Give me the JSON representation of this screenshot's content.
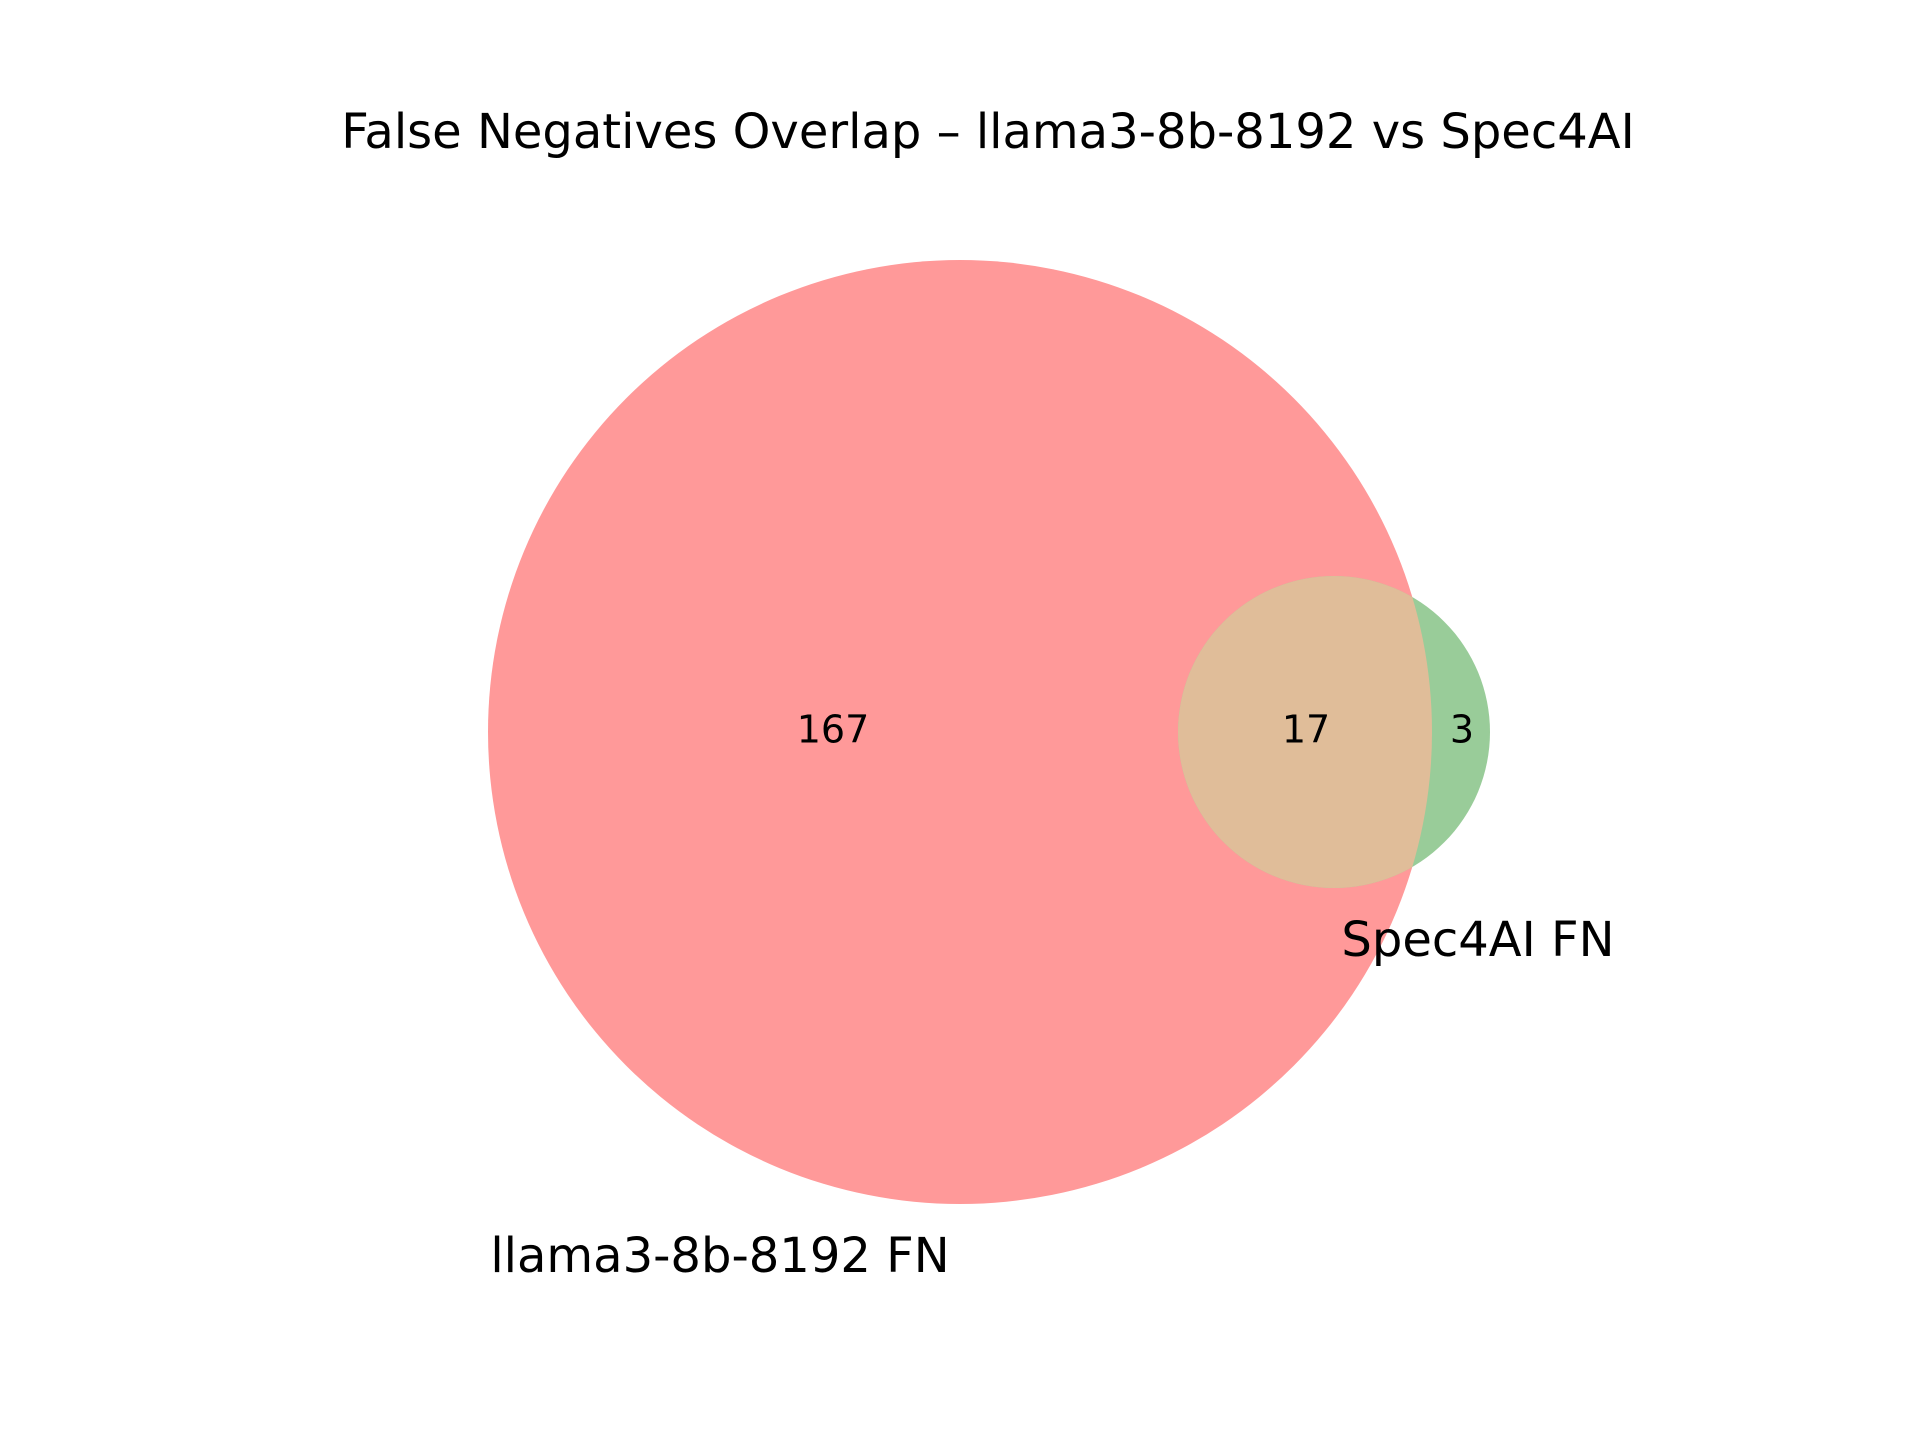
{
  "chart_data": {
    "type": "venn",
    "title": "False Negatives Overlap – llama3-8b-8192 vs Spec4AI",
    "sets": [
      {
        "name": "llama3-8b-8192 FN",
        "color": "#ff9999"
      },
      {
        "name": "Spec4AI FN",
        "color": "#99cc99"
      }
    ],
    "regions": {
      "only_a": 167,
      "overlap": 17,
      "only_b": 3
    },
    "overlap_color": "#e0bd99"
  }
}
